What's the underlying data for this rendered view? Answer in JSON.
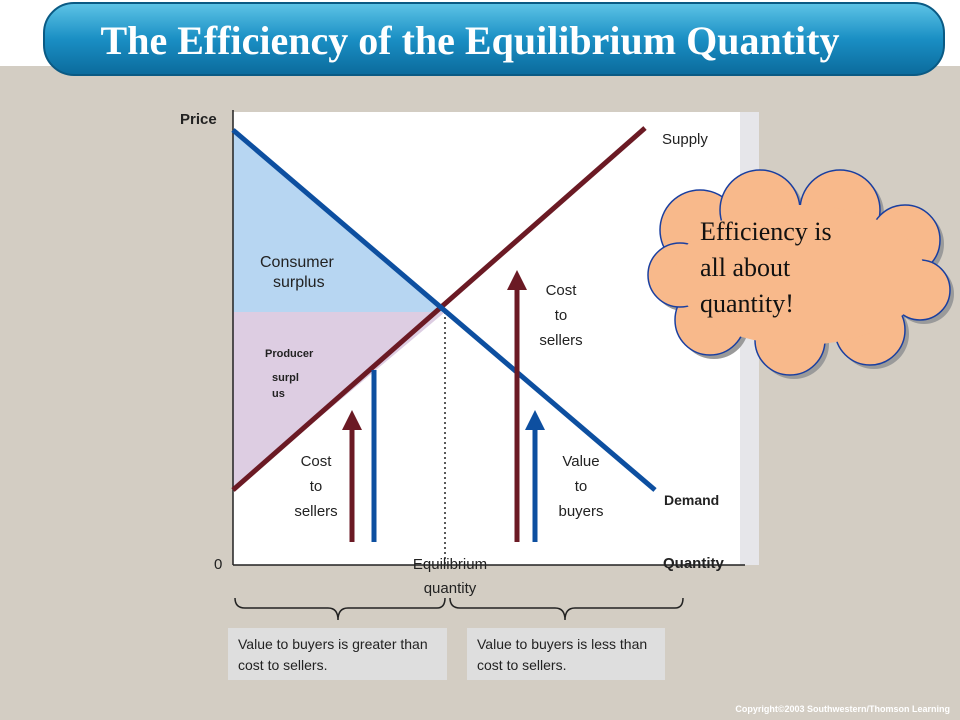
{
  "header": {
    "title": "The Efficiency of the Equilibrium Quantity"
  },
  "diagram": {
    "y_axis_label": "Price",
    "x_axis_label": "Quantity",
    "origin_label": "0",
    "supply_label": "Supply",
    "demand_label": "Demand",
    "consumer_surplus": [
      "Consumer",
      "surplus"
    ],
    "producer_surplus": [
      "Producer",
      "surpl",
      "us"
    ],
    "left_cost": [
      "Cost",
      "to",
      "sellers"
    ],
    "right_cost": [
      "Cost",
      "to",
      "sellers"
    ],
    "right_value": [
      "Value",
      "to",
      "buyers"
    ],
    "equilibrium_label": [
      "Equilibrium",
      "quantity"
    ]
  },
  "callout": {
    "lines": [
      "Efficiency is",
      "all about",
      "quantity!"
    ]
  },
  "notes": [
    "Value to buyers is greater than cost to sellers.",
    "Value to buyers is less than cost to sellers."
  ],
  "footer": {
    "copyright": "Copyright©2003  Southwestern/Thomson Learning"
  }
}
